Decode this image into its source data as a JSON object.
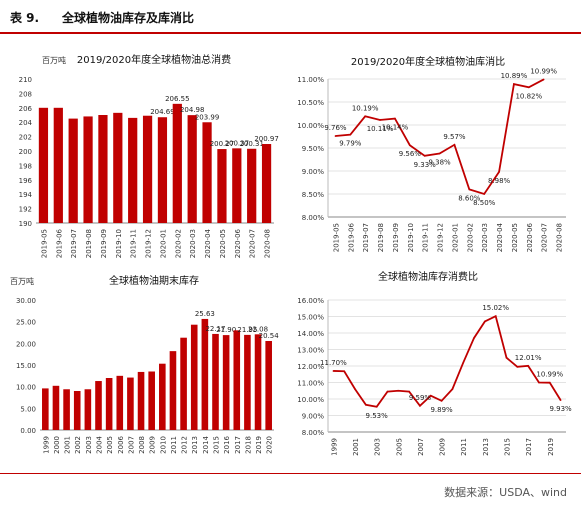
{
  "figure": {
    "label": "表 9.",
    "title": "全球植物油库存及库消比",
    "source": "数据来源：USDA、wind"
  },
  "colors": {
    "accent": "#c00000",
    "bar": "#c00000",
    "grid": "#e3e3e3",
    "text": "#333333"
  },
  "chart_data": [
    {
      "type": "bar",
      "title": "2019/2020年度全球植物油总消费",
      "unit": "百万吨",
      "categories": [
        "2019-05",
        "2019-06",
        "2019-07",
        "2019-08",
        "2019-09",
        "2019-10",
        "2019-11",
        "2019-12",
        "2020-01",
        "2020-02",
        "2020-03",
        "2020-04",
        "2020-05",
        "2020-06",
        "2020-07",
        "2020-08"
      ],
      "values": [
        206.0,
        206.0,
        204.5,
        204.8,
        205.0,
        205.3,
        204.6,
        204.9,
        204.69,
        206.55,
        204.98,
        203.99,
        200.27,
        200.37,
        200.31,
        200.97
      ],
      "labels": [
        "",
        "",
        "",
        "",
        "",
        "",
        "",
        "",
        "204.69",
        "206.55",
        "204.98",
        "203.99",
        "200.27",
        "200.37",
        "200.31",
        "200.97"
      ],
      "ylim": [
        190,
        210
      ],
      "yticks": [
        "190",
        "192",
        "194",
        "196",
        "198",
        "200",
        "202",
        "204",
        "206",
        "208",
        "210"
      ],
      "grid": false
    },
    {
      "type": "line",
      "title": "2019/2020年度全球植物油库消比",
      "categories": [
        "2019-05",
        "2019-06",
        "2019-07",
        "2019-08",
        "2019-09",
        "2019-10",
        "2019-11",
        "2019-12",
        "2020-01",
        "2020-02",
        "2020-03",
        "2020-04",
        "2020-05",
        "2020-06",
        "2020-07",
        "2020-08"
      ],
      "values": [
        9.76,
        9.79,
        10.19,
        10.11,
        10.14,
        9.56,
        9.33,
        9.38,
        9.57,
        8.6,
        8.5,
        8.98,
        10.89,
        10.82,
        10.99,
        null
      ],
      "labels": [
        "9.76%",
        "9.79%",
        "10.19%",
        "10.11%",
        "10.14%",
        "9.56%",
        "9.33%",
        "9.38%",
        "9.57%",
        "8.60%",
        "8.50%",
        "8.98%",
        "10.89%",
        "10.82%",
        "10.99%",
        ""
      ],
      "ylim": [
        8.0,
        11.0
      ],
      "yticks": [
        "8.00%",
        "8.50%",
        "9.00%",
        "9.50%",
        "10.00%",
        "10.50%",
        "11.00%"
      ],
      "grid": true
    },
    {
      "type": "bar",
      "title": "全球植物油期末库存",
      "unit": "百万吨",
      "categories": [
        "1999",
        "2000",
        "2001",
        "2002",
        "2003",
        "2004",
        "2005",
        "2006",
        "2007",
        "2008",
        "2009",
        "2010",
        "2011",
        "2012",
        "2013",
        "2014",
        "2015",
        "2016",
        "2017",
        "2018",
        "2019",
        "2020"
      ],
      "values": [
        9.6,
        10.2,
        9.4,
        9.0,
        9.4,
        11.3,
        12.0,
        12.5,
        12.1,
        13.4,
        13.5,
        15.3,
        18.2,
        21.3,
        24.3,
        25.63,
        22.17,
        21.9,
        23.0,
        21.95,
        22.08,
        20.54
      ],
      "labels": [
        "",
        "",
        "",
        "",
        "",
        "",
        "",
        "",
        "",
        "",
        "",
        "",
        "",
        "",
        "",
        "25.63",
        "22.17",
        "21.90",
        "",
        "21.95",
        "22.08",
        "20.54"
      ],
      "xticks": [
        "1999",
        "2000",
        "2001",
        "2002",
        "2003",
        "2004",
        "2005",
        "2006",
        "2007",
        "2008",
        "2009",
        "2010",
        "2011",
        "2012",
        "2013",
        "2014",
        "2015",
        "2016",
        "2017",
        "2018",
        "2019",
        "2020"
      ],
      "ylim": [
        0,
        30
      ],
      "yticks": [
        "0.00",
        "5.00",
        "10.00",
        "15.00",
        "20.00",
        "25.00",
        "30.00"
      ],
      "grid": false
    },
    {
      "type": "line",
      "title": "全球植物油库存消费比",
      "categories": [
        "1999",
        "2000",
        "2001",
        "2002",
        "2003",
        "2004",
        "2005",
        "2006",
        "2007",
        "2008",
        "2009",
        "2010",
        "2011",
        "2012",
        "2013",
        "2014",
        "2015",
        "2016",
        "2017",
        "2018",
        "2019",
        "2020"
      ],
      "values": [
        11.7,
        11.68,
        10.6,
        9.65,
        9.53,
        10.45,
        10.5,
        10.45,
        9.59,
        10.2,
        9.89,
        10.6,
        12.2,
        13.7,
        14.7,
        15.02,
        12.5,
        11.95,
        12.01,
        11.0,
        10.99,
        9.93
      ],
      "labels": [
        "11.70%",
        "",
        "",
        "",
        "9.53%",
        "",
        "",
        "",
        "9.59%",
        "",
        "9.89%",
        "",
        "",
        "",
        "",
        "15.02%",
        "",
        "",
        "12.01%",
        "",
        "10.99%",
        "9.93%"
      ],
      "xticks": [
        "1999",
        "",
        "2001",
        "",
        "2003",
        "",
        "2005",
        "",
        "2007",
        "",
        "2009",
        "",
        "2011",
        "",
        "2013",
        "",
        "2015",
        "",
        "2017",
        "",
        "2019",
        ""
      ],
      "ylim": [
        8.0,
        16.0
      ],
      "yticks": [
        "8.00%",
        "9.00%",
        "10.00%",
        "11.00%",
        "12.00%",
        "13.00%",
        "14.00%",
        "15.00%",
        "16.00%"
      ],
      "grid": true
    }
  ]
}
